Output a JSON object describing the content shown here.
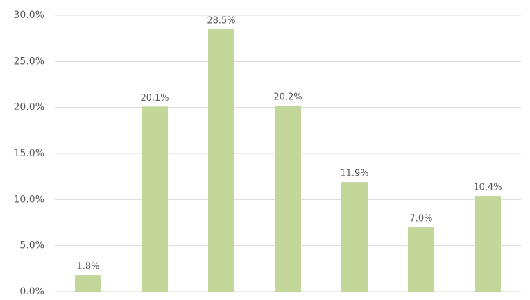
{
  "chart_data": {
    "type": "bar",
    "categories": [
      null,
      null,
      null,
      null,
      null,
      null,
      null
    ],
    "values": [
      1.8,
      20.1,
      28.5,
      20.2,
      11.9,
      7.0,
      10.4
    ],
    "value_labels": [
      "1.8%",
      "20.1%",
      "28.5%",
      "20.2%",
      "11.9%",
      "7.0%",
      "10.4%"
    ],
    "color": "#c4d79b",
    "ylim": [
      0,
      30
    ],
    "yticks": [
      {
        "value": 0,
        "label": "0.0%"
      },
      {
        "value": 5,
        "label": "5.0%"
      },
      {
        "value": 10,
        "label": "10.0%"
      },
      {
        "value": 15,
        "label": "15.0%"
      },
      {
        "value": 20,
        "label": "20.0%"
      },
      {
        "value": 25,
        "label": "25.0%"
      },
      {
        "value": 30,
        "label": "30.0%"
      }
    ],
    "grid": true
  }
}
